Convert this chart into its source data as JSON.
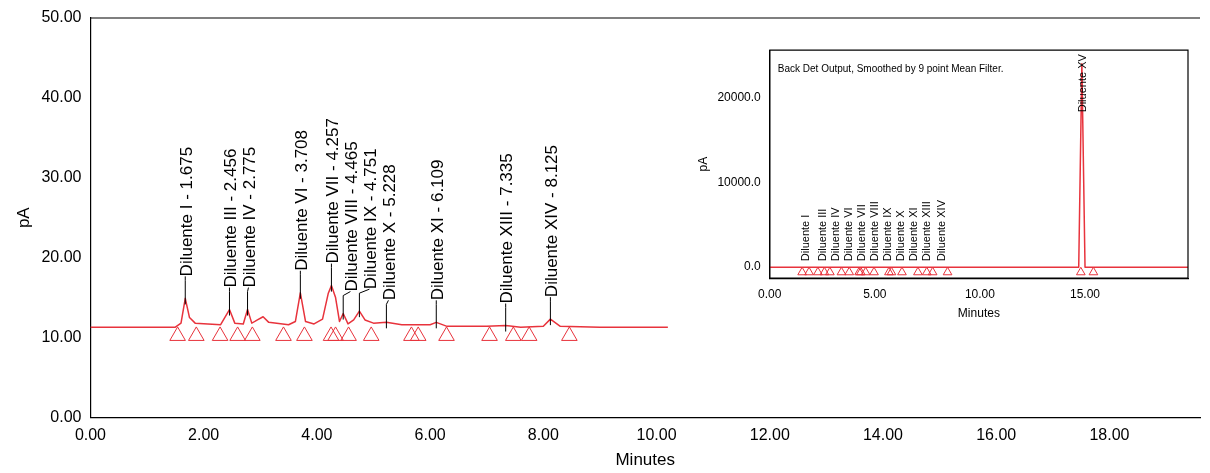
{
  "chart_data": [
    {
      "type": "line",
      "xlabel": "Minutes",
      "ylabel": "pA",
      "xlim": [
        0,
        19.6
      ],
      "ylim": [
        0,
        50
      ],
      "xticks": [
        {
          "value": 0,
          "label": "0.00"
        },
        {
          "value": 2,
          "label": "2.00"
        },
        {
          "value": 4,
          "label": "4.00"
        },
        {
          "value": 6,
          "label": "6.00"
        },
        {
          "value": 8,
          "label": "8.00"
        },
        {
          "value": 10,
          "label": "10.00"
        },
        {
          "value": 12,
          "label": "12.00"
        },
        {
          "value": 14,
          "label": "14.00"
        },
        {
          "value": 16,
          "label": "16.00"
        },
        {
          "value": 18,
          "label": "18.00"
        }
      ],
      "yticks": [
        {
          "value": 0,
          "label": "0.00"
        },
        {
          "value": 10,
          "label": "10.00"
        },
        {
          "value": 20,
          "label": "20.00"
        },
        {
          "value": 30,
          "label": "30.00"
        },
        {
          "value": 40,
          "label": "40.00"
        },
        {
          "value": 50,
          "label": "50.00"
        }
      ],
      "grid": false,
      "legend": false,
      "series": [
        {
          "type": "line",
          "color": "#e8333c",
          "marker": "none",
          "x": [
            0,
            1.5,
            1.6,
            1.675,
            1.75,
            1.85,
            2.3,
            2.456,
            2.55,
            2.7,
            2.775,
            2.85,
            2.95,
            3.05,
            3.15,
            3.5,
            3.62,
            3.708,
            3.8,
            3.95,
            4.1,
            4.2,
            4.257,
            4.33,
            4.4,
            4.465,
            4.55,
            4.65,
            4.751,
            4.85,
            5,
            5.228,
            5.5,
            6,
            6.109,
            6.3,
            7,
            7.335,
            7.6,
            8,
            8.125,
            8.3,
            9,
            10.2
          ],
          "values": [
            11.3,
            11.3,
            11.8,
            14.9,
            12.5,
            11.8,
            11.6,
            13.5,
            11.8,
            11.7,
            13.5,
            11.8,
            12.2,
            12.6,
            11.9,
            11.6,
            12,
            15.6,
            12,
            11.7,
            12.3,
            15.5,
            16.5,
            15,
            12,
            13,
            11.7,
            12.2,
            13.3,
            12.2,
            11.8,
            11.9,
            11.6,
            11.6,
            11.9,
            11.4,
            11.4,
            11.5,
            11.3,
            11.4,
            12.3,
            11.4,
            11.3,
            11.3
          ]
        },
        {
          "type": "scatter",
          "color": "#e8333c",
          "marker": "triangle",
          "x": [
            1.54,
            1.87,
            2.29,
            2.6,
            2.86,
            3.41,
            3.78,
            4.25,
            4.33,
            4.56,
            4.96,
            5.67,
            5.79,
            6.29,
            7.05,
            7.47,
            7.75,
            8.46
          ],
          "values": [
            10.2,
            10.2,
            10.2,
            10.2,
            10.2,
            10.2,
            10.2,
            10.2,
            10.2,
            10.2,
            10.2,
            10.2,
            10.2,
            10.2,
            10.2,
            10.2,
            10.2,
            10.2
          ]
        }
      ],
      "annotations": [
        {
          "text": "Diluente I - 1.675",
          "x": 1.675,
          "y": 14.9
        },
        {
          "text": "Diluente III - 2.456",
          "x": 2.456,
          "y": 13.5
        },
        {
          "text": "Diluente IV - 2.775",
          "x": 2.775,
          "y": 13.5
        },
        {
          "text": "Diluente VI - 3.708",
          "x": 3.708,
          "y": 15.6
        },
        {
          "text": "Diluente VII - 4.257",
          "x": 4.257,
          "y": 16.5
        },
        {
          "text": "Diluente VIII - 4.465",
          "x": 4.465,
          "y": 13
        },
        {
          "text": "Diluente IX - 4.751",
          "x": 4.751,
          "y": 13.3
        },
        {
          "text": "Diluente X - 5.228",
          "x": 5.228,
          "y": 11.9
        },
        {
          "text": "Diluente XI - 6.109",
          "x": 6.109,
          "y": 11.9
        },
        {
          "text": "Diluente XIII - 7.335",
          "x": 7.335,
          "y": 11.5
        },
        {
          "text": "Diluente XIV - 8.125",
          "x": 8.125,
          "y": 12.3
        }
      ]
    },
    {
      "type": "line",
      "xlabel": "Minutes",
      "ylabel": "pA",
      "xlim": [
        0,
        19.9
      ],
      "ylim": [
        -1300,
        25600
      ],
      "xticks": [
        {
          "value": 0,
          "label": "0.00"
        },
        {
          "value": 5,
          "label": "5.00"
        },
        {
          "value": 10,
          "label": "10.00"
        },
        {
          "value": 15,
          "label": "15.00"
        }
      ],
      "yticks": [
        {
          "value": 0,
          "label": "0.0"
        },
        {
          "value": 10000,
          "label": "10000.0"
        },
        {
          "value": 20000,
          "label": "20000.0"
        }
      ],
      "grid": false,
      "legend": false,
      "series": [
        {
          "type": "line",
          "color": "#e8333c",
          "marker": "none",
          "x": [
            0,
            14.7,
            14.85,
            15,
            19.9
          ],
          "values": [
            0,
            0,
            24000,
            0,
            0
          ]
        },
        {
          "type": "scatter",
          "color": "#e8333c",
          "marker": "triangle",
          "x": [
            1.54,
            1.87,
            2.29,
            2.6,
            2.86,
            3.41,
            3.78,
            4.25,
            4.33,
            4.56,
            4.96,
            5.67,
            5.79,
            6.29,
            7.05,
            7.47,
            7.75,
            8.46,
            14.8,
            15.4
          ],
          "values": [
            -600,
            -600,
            -600,
            -600,
            -600,
            -600,
            -600,
            -600,
            -600,
            -600,
            -600,
            -600,
            -600,
            -600,
            -600,
            -600,
            -600,
            -600,
            -600,
            -600
          ]
        }
      ],
      "annotations": [
        "Back Det Output, Smoothed by 9 point Mean Filter.",
        {
          "text": "Diluente I",
          "x": 1.675,
          "y": 0
        },
        {
          "text": "Diluente III",
          "x": 2.456,
          "y": 0
        },
        {
          "text": "Diluente IV",
          "x": 2.775,
          "y": 0
        },
        {
          "text": "Diluente VI",
          "x": 3.708,
          "y": 0
        },
        {
          "text": "Diluente VII",
          "x": 4.257,
          "y": 0
        },
        {
          "text": "Diluente VIII",
          "x": 4.465,
          "y": 0
        },
        {
          "text": "Diluente IX",
          "x": 4.751,
          "y": 0
        },
        {
          "text": "Diluente X",
          "x": 5.228,
          "y": 0
        },
        {
          "text": "Diluente XI",
          "x": 6.109,
          "y": 0
        },
        {
          "text": "Diluente XIII",
          "x": 7.335,
          "y": 0
        },
        {
          "text": "Diluente XIV",
          "x": 8.125,
          "y": 0
        },
        {
          "text": "Diluente XV",
          "x": 14.85,
          "y": 24000
        }
      ]
    }
  ]
}
